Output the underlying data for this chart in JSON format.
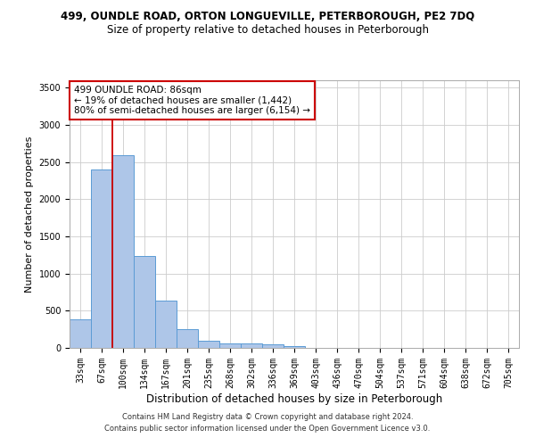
{
  "title_line1": "499, OUNDLE ROAD, ORTON LONGUEVILLE, PETERBOROUGH, PE2 7DQ",
  "title_line2": "Size of property relative to detached houses in Peterborough",
  "xlabel": "Distribution of detached houses by size in Peterborough",
  "ylabel": "Number of detached properties",
  "footer_line1": "Contains HM Land Registry data © Crown copyright and database right 2024.",
  "footer_line2": "Contains public sector information licensed under the Open Government Licence v3.0.",
  "bar_labels": [
    "33sqm",
    "67sqm",
    "100sqm",
    "134sqm",
    "167sqm",
    "201sqm",
    "235sqm",
    "268sqm",
    "302sqm",
    "336sqm",
    "369sqm",
    "403sqm",
    "436sqm",
    "470sqm",
    "504sqm",
    "537sqm",
    "571sqm",
    "604sqm",
    "638sqm",
    "672sqm",
    "705sqm"
  ],
  "bar_values": [
    390,
    2400,
    2590,
    1240,
    640,
    255,
    100,
    65,
    60,
    45,
    30,
    0,
    0,
    0,
    0,
    0,
    0,
    0,
    0,
    0,
    0
  ],
  "bar_color": "#aec6e8",
  "bar_edge_color": "#5b9bd5",
  "vline_x": 1.5,
  "vline_color": "#cc0000",
  "ylim": [
    0,
    3600
  ],
  "yticks": [
    0,
    500,
    1000,
    1500,
    2000,
    2500,
    3000,
    3500
  ],
  "annotation_text": "499 OUNDLE ROAD: 86sqm\n← 19% of detached houses are smaller (1,442)\n80% of semi-detached houses are larger (6,154) →",
  "background_color": "#ffffff",
  "grid_color": "#cccccc",
  "title1_fontsize": 8.5,
  "title2_fontsize": 8.5,
  "ylabel_fontsize": 8,
  "xlabel_fontsize": 8.5,
  "tick_fontsize": 7,
  "footer_fontsize": 6,
  "annot_fontsize": 7.5
}
